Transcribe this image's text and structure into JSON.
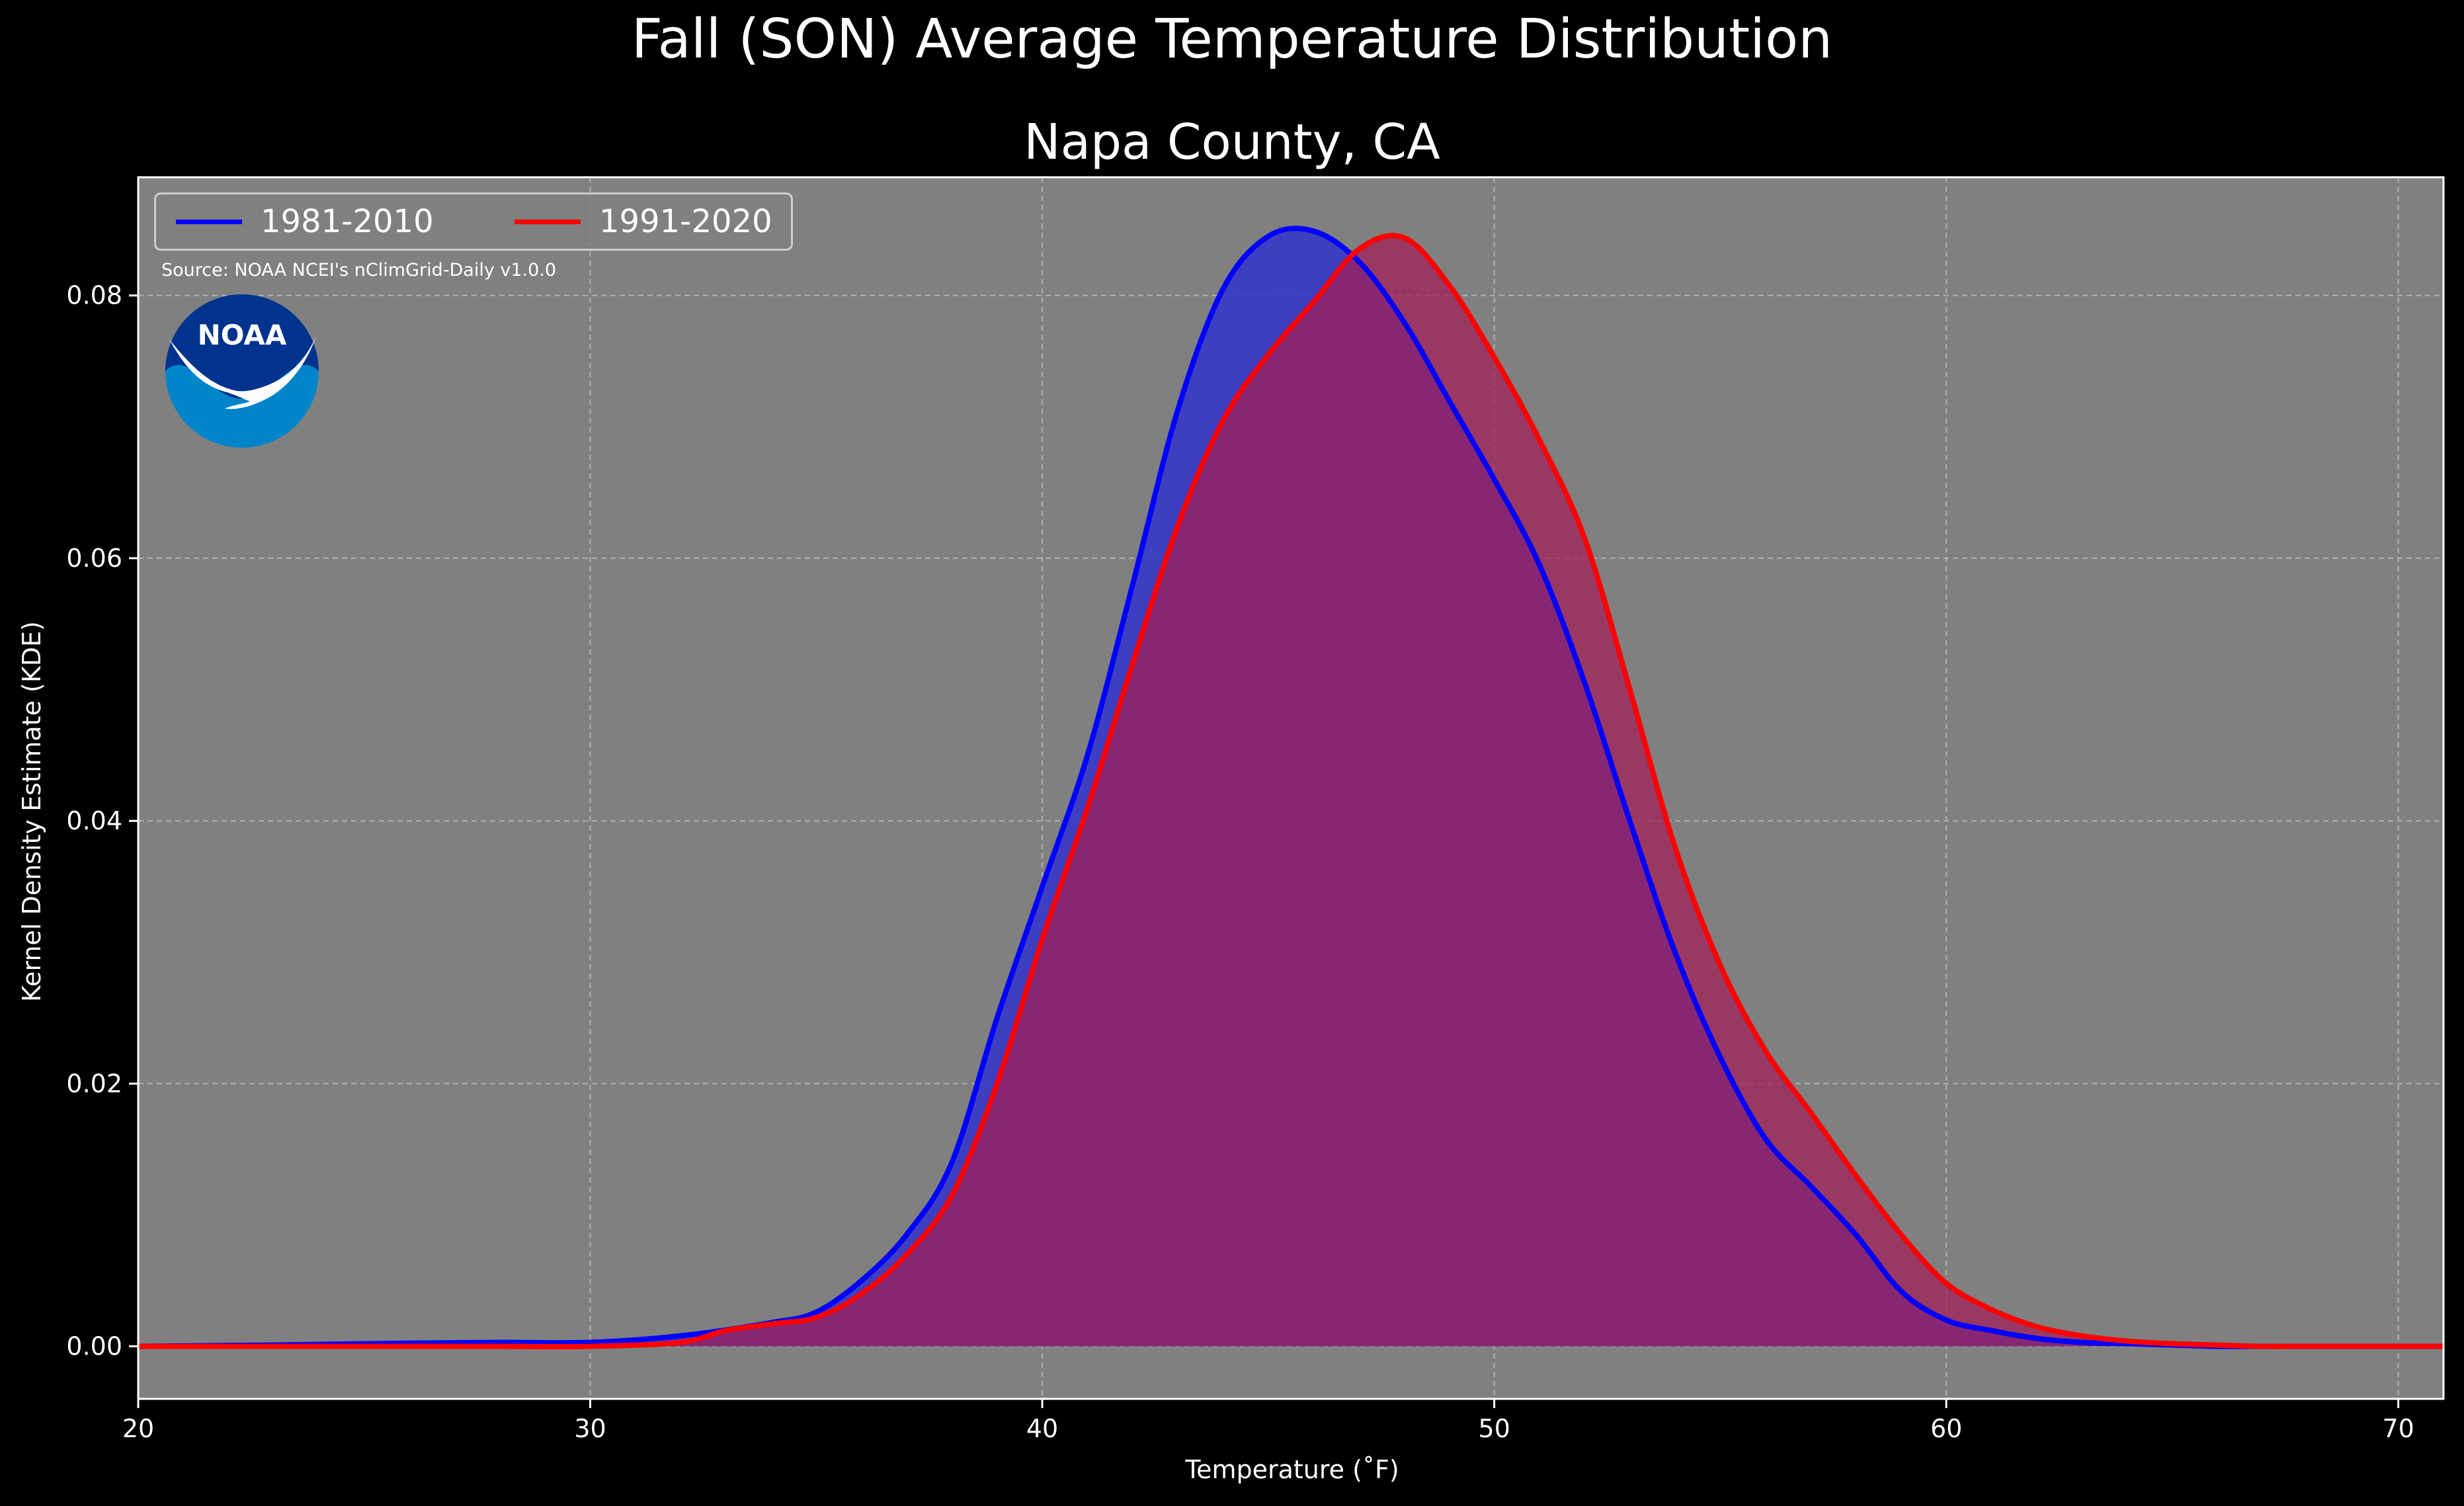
{
  "figure": {
    "suptitle": "Fall (SON) Average Temperature Distribution",
    "subtitle": "Napa County, CA",
    "source": "Source: NOAA NCEI's nClimGrid-Daily v1.0.0",
    "logo_text": "NOAA"
  },
  "colors": {
    "background": "#000000",
    "plot_background": "#808080",
    "series_1981": "#0000ff",
    "series_1991": "#ff0000",
    "fill_1981": "#3333cc",
    "fill_1991": "#a0205a",
    "noaa_dark": "#00338d",
    "noaa_light": "#0085ca"
  },
  "chart_data": {
    "type": "area",
    "title": "Napa County, CA",
    "xlabel": "Temperature ($^\\circ$F)",
    "xlabel_display": "Temperature (˚F)",
    "ylabel": "Kernel Density Estimate (KDE)",
    "xlim": [
      20,
      71
    ],
    "ylim": [
      -0.004,
      0.089
    ],
    "xticks": [
      20,
      30,
      40,
      50,
      60,
      70
    ],
    "yticks": [
      0.0,
      0.02,
      0.04,
      0.06,
      0.08
    ],
    "ytick_labels": [
      "0.00",
      "0.02",
      "0.04",
      "0.06",
      "0.08"
    ],
    "grid": true,
    "legend_position": "top-left",
    "legend_columns": 2,
    "series": [
      {
        "name": "1981-2010",
        "color": "#0000ff",
        "x": [
          20,
          23,
          25,
          28,
          30,
          32,
          34,
          35,
          36,
          37,
          38,
          39,
          40,
          41,
          42,
          43,
          44,
          45,
          46,
          47,
          48,
          49,
          50,
          51,
          52,
          53,
          54,
          55,
          56,
          57,
          58,
          59,
          60,
          61,
          62,
          63,
          64,
          65,
          66,
          67,
          68,
          70,
          71
        ],
        "y": [
          0.0,
          0.0001,
          0.0002,
          0.0003,
          0.0003,
          0.0008,
          0.0018,
          0.0026,
          0.005,
          0.0085,
          0.014,
          0.025,
          0.035,
          0.045,
          0.058,
          0.0713,
          0.0805,
          0.0845,
          0.0849,
          0.0826,
          0.078,
          0.072,
          0.066,
          0.0595,
          0.0505,
          0.04,
          0.03,
          0.022,
          0.0158,
          0.0122,
          0.0085,
          0.0042,
          0.002,
          0.0012,
          0.0006,
          0.0003,
          0.0002,
          0.0001,
          0.0,
          0.0,
          0.0,
          0.0,
          0.0
        ]
      },
      {
        "name": "1991-2020",
        "color": "#ff0000",
        "x": [
          20,
          23,
          25,
          28,
          30,
          32,
          33,
          34,
          35,
          36,
          37,
          38,
          39,
          40,
          41,
          42,
          43,
          44,
          45,
          46,
          47,
          48,
          49,
          50,
          51,
          52,
          53,
          54,
          55,
          56,
          57,
          58,
          59,
          60,
          61,
          62,
          63,
          64,
          65,
          66,
          67,
          68,
          70,
          71
        ],
        "y": [
          0.0,
          0.0,
          0.0,
          0.0,
          0.0,
          0.0003,
          0.0012,
          0.0017,
          0.0022,
          0.004,
          0.007,
          0.0115,
          0.02,
          0.031,
          0.041,
          0.052,
          0.0625,
          0.0705,
          0.0755,
          0.0795,
          0.0835,
          0.0844,
          0.0808,
          0.0753,
          0.069,
          0.0615,
          0.05,
          0.038,
          0.029,
          0.0225,
          0.0178,
          0.013,
          0.0085,
          0.0048,
          0.0028,
          0.0015,
          0.0008,
          0.0004,
          0.0002,
          0.0001,
          0.0,
          0.0,
          0.0,
          0.0
        ]
      }
    ]
  }
}
